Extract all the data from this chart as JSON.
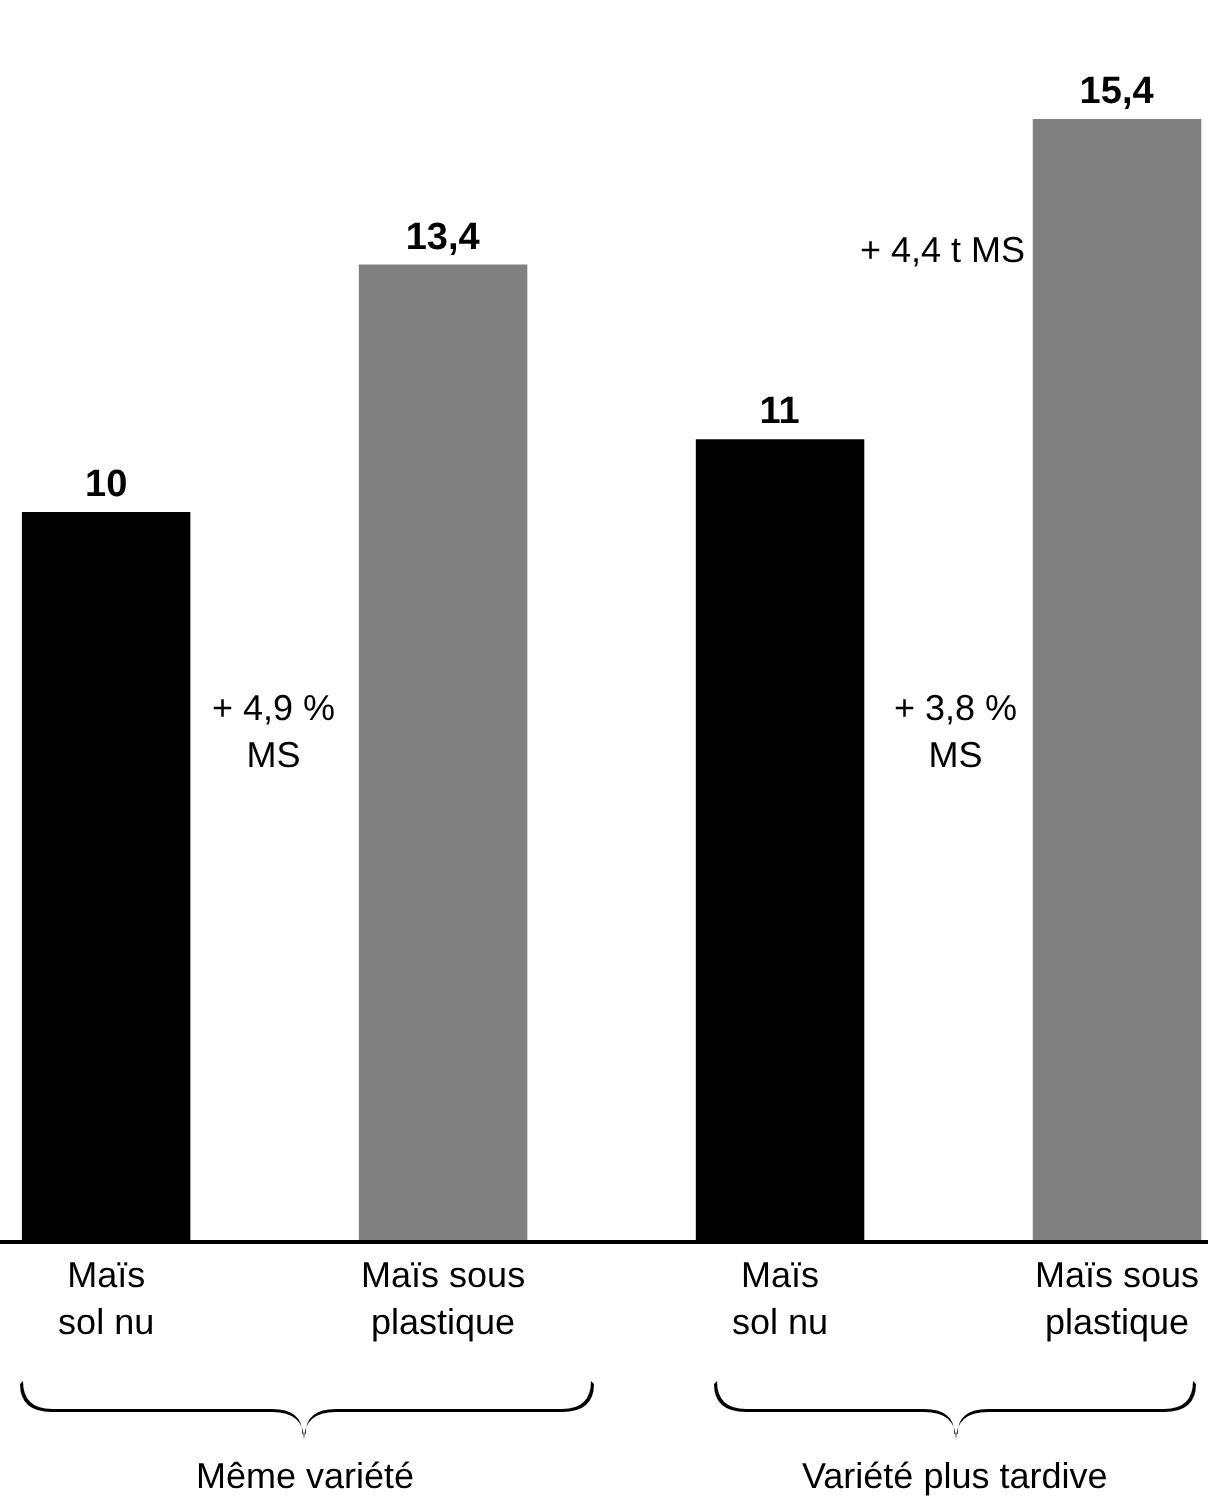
{
  "chart_data": {
    "type": "bar",
    "categories": [
      "Maïs\nsol nu",
      "Maïs sous\nplastique",
      "Maïs\nsol nu",
      "Maïs sous\nplastique"
    ],
    "values": [
      10,
      13.4,
      11,
      15.4
    ],
    "colors": [
      "#000000",
      "#808080",
      "#000000",
      "#808080"
    ],
    "value_labels": [
      "10",
      "13,4",
      "11",
      "15,4"
    ],
    "annotations": [
      "+ 4,9 %\nMS",
      "+ 4,4 t MS",
      "+ 3,8 %\nMS",
      "Même variété",
      "Variété plus tardive"
    ]
  }
}
